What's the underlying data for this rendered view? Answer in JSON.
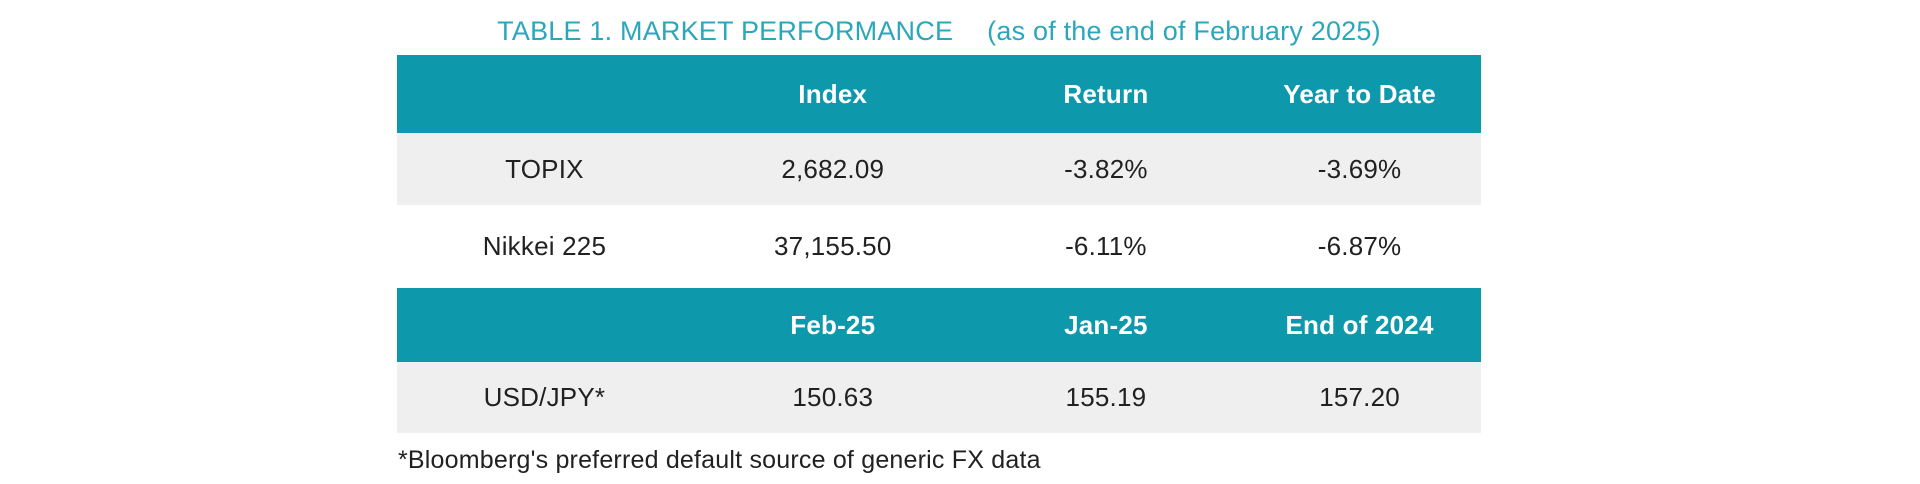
{
  "title": {
    "main": "TABLE 1. MARKET PERFORMANCE",
    "suffix": "(as of the end of February 2025)"
  },
  "tables": [
    {
      "headers": [
        "",
        "Index",
        "Return",
        "Year to Date"
      ],
      "rows": [
        [
          "TOPIX",
          "2,682.09",
          "-3.82%",
          "-3.69%"
        ],
        [
          "Nikkei 225",
          "37,155.50",
          "-6.11%",
          "-6.87%"
        ]
      ]
    },
    {
      "headers": [
        "",
        "Feb-25",
        "Jan-25",
        "End of 2024"
      ],
      "rows": [
        [
          "USD/JPY*",
          "150.63",
          "155.19",
          "157.20"
        ]
      ]
    }
  ],
  "footnote": "*Bloomberg's preferred default source of generic FX data",
  "colors": {
    "header_teal": "#0e98ac",
    "title_teal": "#2ba7bc",
    "row_gray": "#f0efef",
    "text_dark": "#212121"
  }
}
